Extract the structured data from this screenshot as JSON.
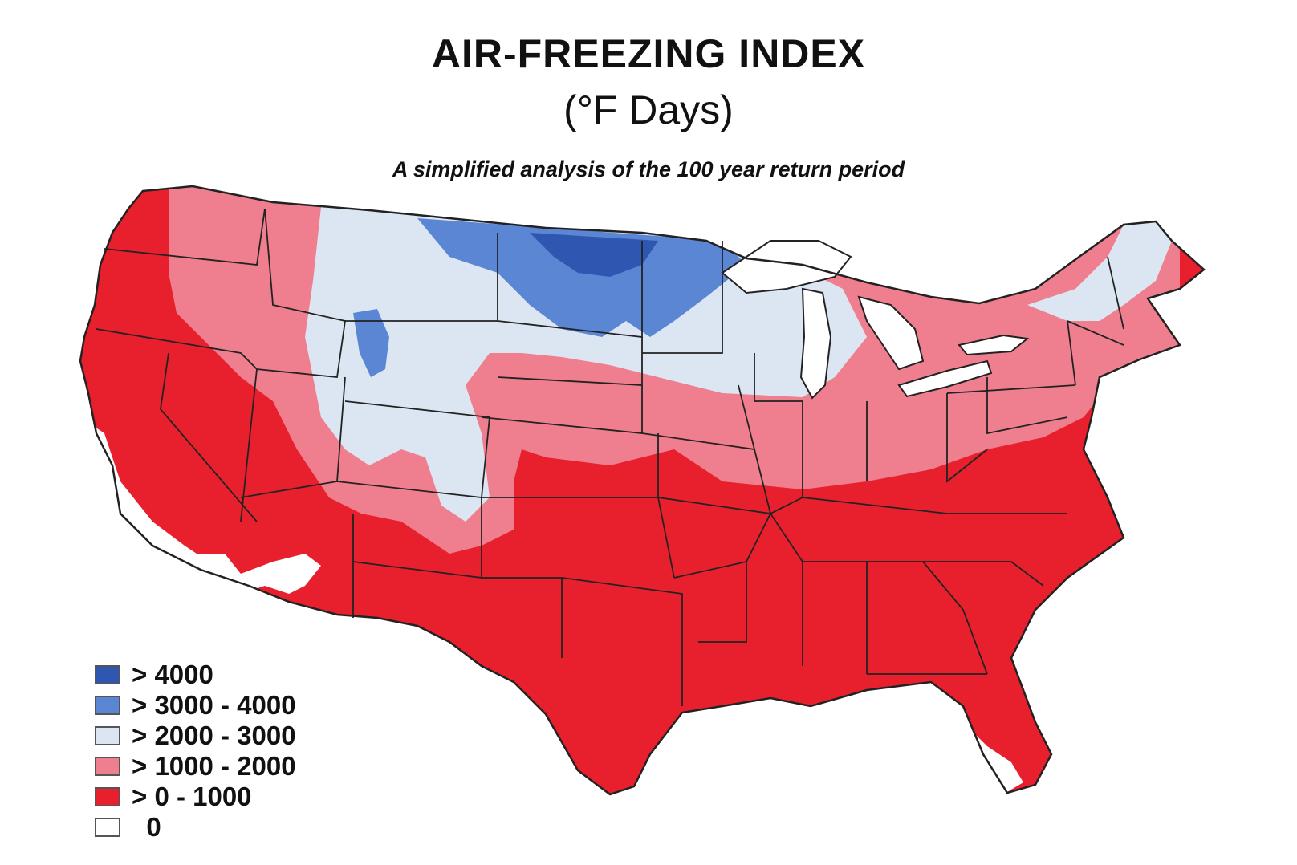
{
  "header": {
    "title": "AIR-FREEZING INDEX",
    "subtitle": "(°F Days)",
    "caption": "A simplified analysis of the 100 year return period"
  },
  "legend": {
    "items": [
      {
        "label": "> 4000",
        "color": "#2f56b0"
      },
      {
        "label": "> 3000 - 4000",
        "color": "#5a86d4"
      },
      {
        "label": "> 2000 - 3000",
        "color": "#dbe6f2"
      },
      {
        "label": "> 1000 - 2000",
        "color": "#ef7f8e"
      },
      {
        "label": "> 0 - 1000",
        "color": "#e8202d"
      },
      {
        "label": "  0",
        "color": "#ffffff"
      }
    ]
  },
  "map": {
    "region": "contiguous-united-states",
    "colors": {
      "zone_0": "#ffffff",
      "zone_0_1000": "#e8202d",
      "zone_1000_2000": "#ef7f8e",
      "zone_2000_3000": "#dbe6f2",
      "zone_3000_4000": "#5a86d4",
      "zone_4000_plus": "#2f56b0",
      "borders": "#222222"
    }
  }
}
